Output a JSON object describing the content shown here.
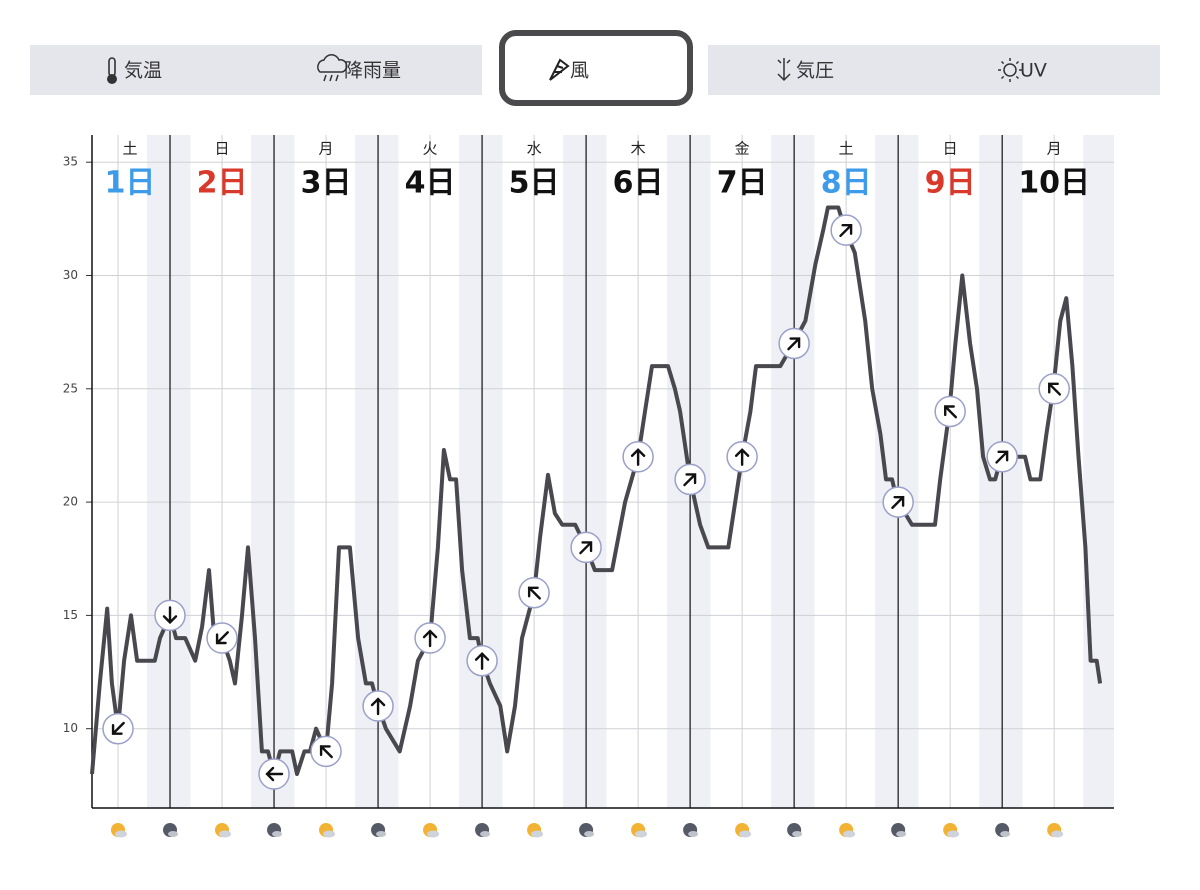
{
  "tabs": {
    "items": [
      "気温",
      "降雨量",
      "風",
      "気圧",
      "UV"
    ],
    "selected": 2
  },
  "chart_data": {
    "type": "line",
    "days": [
      {
        "weekday": "土",
        "day": "1日",
        "color": "#3d9be9"
      },
      {
        "weekday": "日",
        "day": "2日",
        "color": "#d9392b"
      },
      {
        "weekday": "月",
        "day": "3日",
        "color": "#111111"
      },
      {
        "weekday": "火",
        "day": "4日",
        "color": "#111111"
      },
      {
        "weekday": "水",
        "day": "5日",
        "color": "#111111"
      },
      {
        "weekday": "木",
        "day": "6日",
        "color": "#111111"
      },
      {
        "weekday": "金",
        "day": "7日",
        "color": "#111111"
      },
      {
        "weekday": "土",
        "day": "8日",
        "color": "#3d9be9"
      },
      {
        "weekday": "日",
        "day": "9日",
        "color": "#d9392b"
      },
      {
        "weekday": "月",
        "day": "10日",
        "color": "#111111"
      }
    ],
    "xlim": [
      6,
      241.8
    ],
    "ylim": [
      6.5,
      36.2
    ],
    "yticks": [
      10,
      15,
      20,
      25,
      30,
      35
    ],
    "grid": true,
    "series": [
      {
        "color": "#48484e",
        "x": [
          6,
          7.8,
          9.5,
          10.6,
          12,
          13.4,
          15,
          16.4,
          17.5,
          20.5,
          21.7,
          24,
          25.4,
          27.5,
          29.8,
          31.4,
          33,
          34,
          36,
          37.8,
          39,
          40.6,
          42,
          43.6,
          45.2,
          46.6,
          48,
          49.4,
          50.8,
          52.2,
          53.3,
          55,
          56.3,
          57.7,
          60,
          61.4,
          63,
          64.2,
          65.5,
          67.4,
          69.2,
          70.6,
          72,
          73.8,
          77,
          79.4,
          81.2,
          82.6,
          84,
          85.8,
          87.2,
          88.6,
          90,
          91.4,
          93.2,
          95,
          96,
          97.8,
          100.2,
          101.8,
          103.6,
          105.2,
          108,
          109.4,
          111.2,
          112.8,
          114.5,
          117.5,
          120,
          122,
          123.2,
          126,
          129,
          132,
          133.6,
          135.2,
          137,
          138.9,
          140.5,
          141.7,
          144,
          146.3,
          148.2,
          151,
          152.8,
          154.4,
          156,
          157.9,
          159.2,
          162.5,
          164.8,
          167.8,
          170.6,
          172.9,
          174.7,
          175.8,
          178.2,
          179.8,
          182,
          184.4,
          186,
          187.9,
          189.2,
          190.6,
          191.8,
          193.6,
          195.2,
          198.2,
          200.5,
          201.7,
          203.8,
          205.2,
          206.8,
          208.6,
          210.2,
          211.6,
          213.2,
          214.4,
          215.8,
          218.3,
          221.3,
          222.5,
          224.8,
          226.2,
          227.8,
          229.4,
          230.8,
          232.2,
          233.6,
          235.2,
          236.4,
          237.8,
          238.6
        ],
        "values": [
          8,
          12,
          15.3,
          12,
          10,
          13,
          15,
          13,
          13,
          13,
          14,
          15,
          14,
          14,
          13,
          14.5,
          17,
          14.5,
          14,
          13,
          12,
          15,
          18,
          14,
          9,
          9,
          8,
          9,
          9,
          9,
          8,
          9,
          9,
          10,
          9,
          12,
          18,
          18,
          18,
          14,
          12,
          12,
          11,
          10,
          9,
          11,
          13,
          13.5,
          14,
          18,
          22.3,
          21,
          21,
          17,
          14,
          14,
          13,
          12,
          11,
          9,
          11,
          14,
          16,
          18.5,
          21.2,
          19.5,
          19,
          19,
          18,
          17,
          17,
          17,
          20,
          22,
          24,
          26,
          26,
          26,
          25,
          24,
          21,
          19,
          18,
          18,
          18,
          20,
          22,
          24,
          26,
          26,
          26,
          27,
          28,
          30.5,
          32,
          33,
          33,
          32,
          31,
          28,
          25,
          23,
          21,
          21,
          20,
          19.5,
          19,
          19,
          19,
          21,
          24,
          27,
          30,
          27,
          25,
          22,
          21,
          21,
          22,
          22,
          22,
          21,
          21,
          23,
          25,
          28,
          29,
          26,
          22,
          18,
          13,
          13,
          12
        ]
      }
    ],
    "arrows": {
      "x": [
        12,
        24,
        36,
        48,
        60,
        72,
        84,
        96,
        108,
        120,
        132,
        144,
        156,
        168,
        180,
        192,
        204,
        216,
        228
      ],
      "values": [
        10,
        15,
        14,
        8,
        9,
        11,
        14,
        13,
        16,
        18,
        22,
        21,
        22,
        27,
        32,
        20,
        24,
        22,
        25
      ],
      "directions": [
        225,
        180,
        225,
        270,
        315,
        0,
        0,
        0,
        315,
        45,
        0,
        45,
        0,
        45,
        45,
        45,
        315,
        45,
        315
      ]
    }
  }
}
